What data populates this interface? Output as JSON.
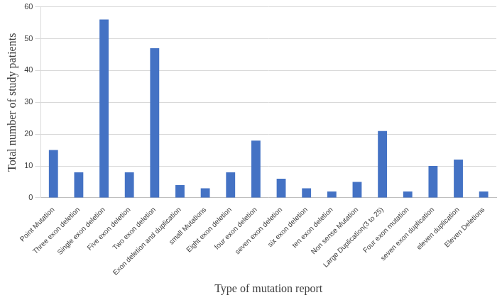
{
  "chart_data": {
    "type": "bar",
    "x_label": "Type of mutation report",
    "y_label": "Total number of study patients",
    "categories": [
      "Point Mutation",
      "Three exon deletion",
      "Single exon deletion",
      "Five exon deletion",
      "Two exon deletion",
      "Exon deletion and duplication",
      "small Mutations",
      "Eight exon deletion",
      "four exon deletion",
      "seven exon deletion",
      "six exon deletion",
      "ten exon deletion",
      "Non sense Mutation",
      "Large Duplication(3 to 25)",
      "Four exon mutation",
      "seven exon duplication",
      "eleven duplication",
      "Eleven Deletions"
    ],
    "values": [
      15,
      8,
      56,
      8,
      47,
      4,
      3,
      8,
      18,
      6,
      3,
      2,
      5,
      21,
      2,
      10,
      12,
      2
    ],
    "color": "#4472c4",
    "ylim": [
      0,
      60
    ],
    "yticks": [
      0,
      10,
      20,
      30,
      40,
      50,
      60
    ],
    "grid": true
  }
}
